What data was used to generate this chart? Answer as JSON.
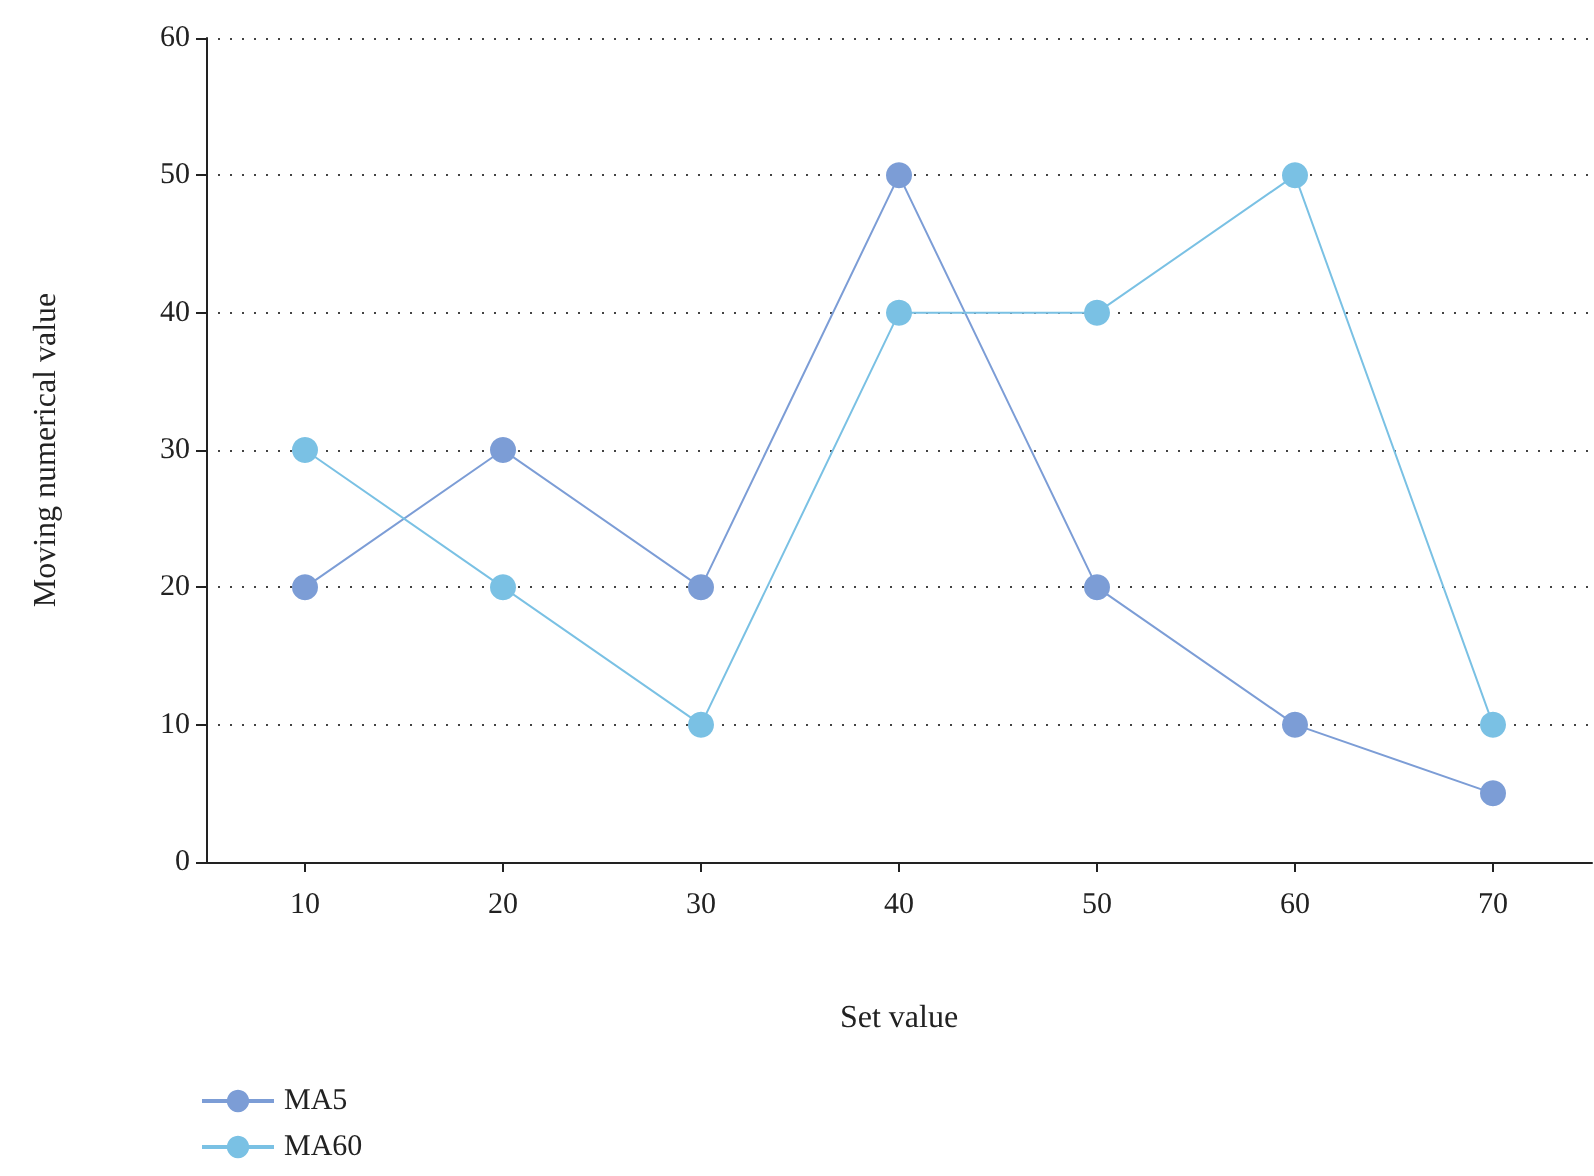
{
  "chart_data": {
    "type": "line",
    "xlabel": "Set value",
    "ylabel": "Moving numerical value",
    "categories": [
      "10",
      "20",
      "30",
      "40",
      "50",
      "60",
      "70"
    ],
    "series": [
      {
        "name": "MA5",
        "color": "#7c9dd6",
        "values": [
          20,
          30,
          20,
          50,
          20,
          10,
          5
        ]
      },
      {
        "name": "MA60",
        "color": "#7ac1e4",
        "values": [
          30,
          20,
          10,
          40,
          40,
          50,
          10
        ]
      }
    ],
    "ylim": [
      0,
      60
    ],
    "yticks": [
      0,
      10,
      20,
      30,
      40,
      50,
      60
    ],
    "grid": "y",
    "legend": "bottom left",
    "marker": "circle",
    "line_style": "solid"
  }
}
